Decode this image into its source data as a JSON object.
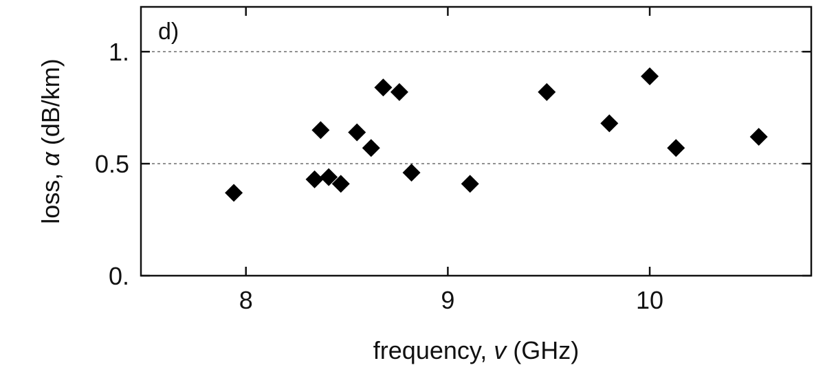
{
  "chart_data": {
    "type": "scatter",
    "panel_label": "d)",
    "title": "",
    "xlabel": "frequency, ν (GHz)",
    "xlabel_parts": {
      "prefix": "frequency, ",
      "symbol": "v",
      "suffix": " (GHz)"
    },
    "ylabel": "loss, α (dB/km)",
    "ylabel_parts": {
      "prefix": "loss, ",
      "symbol": "α",
      "suffix": " (dB/km)"
    },
    "xlim": [
      7.48,
      10.8
    ],
    "ylim": [
      0.0,
      1.2
    ],
    "x_ticks": [
      {
        "value": 8,
        "label": "8"
      },
      {
        "value": 9,
        "label": "9"
      },
      {
        "value": 10,
        "label": "10"
      }
    ],
    "y_ticks": [
      {
        "value": 0.0,
        "label": "0."
      },
      {
        "value": 0.5,
        "label": "0.5"
      },
      {
        "value": 1.0,
        "label": "1."
      }
    ],
    "gridlines_y": [
      0.5,
      1.0
    ],
    "marker": "diamond",
    "marker_color": "#000000",
    "grid_color": "#777777",
    "series": [
      {
        "points": [
          {
            "x": 7.94,
            "y": 0.37
          },
          {
            "x": 8.34,
            "y": 0.43
          },
          {
            "x": 8.37,
            "y": 0.65
          },
          {
            "x": 8.41,
            "y": 0.44
          },
          {
            "x": 8.47,
            "y": 0.41
          },
          {
            "x": 8.55,
            "y": 0.64
          },
          {
            "x": 8.62,
            "y": 0.57
          },
          {
            "x": 8.68,
            "y": 0.84
          },
          {
            "x": 8.76,
            "y": 0.82
          },
          {
            "x": 8.82,
            "y": 0.46
          },
          {
            "x": 9.11,
            "y": 0.41
          },
          {
            "x": 9.49,
            "y": 0.82
          },
          {
            "x": 9.8,
            "y": 0.68
          },
          {
            "x": 10.0,
            "y": 0.89
          },
          {
            "x": 10.13,
            "y": 0.57
          },
          {
            "x": 10.54,
            "y": 0.62
          }
        ]
      }
    ]
  }
}
